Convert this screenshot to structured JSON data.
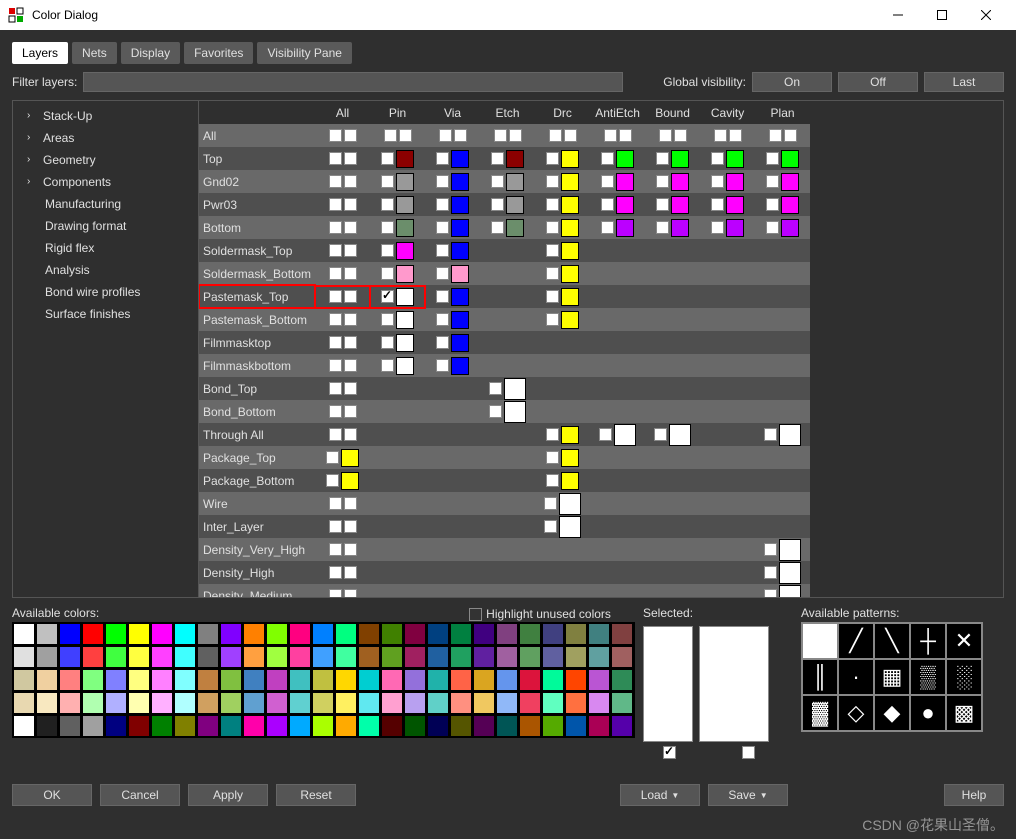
{
  "window": {
    "title": "Color Dialog"
  },
  "tabs": [
    "Layers",
    "Nets",
    "Display",
    "Favorites",
    "Visibility Pane"
  ],
  "activeTab": 0,
  "filter": {
    "label": "Filter layers:",
    "value": ""
  },
  "globalVisibility": {
    "label": "Global visibility:",
    "buttons": [
      "On",
      "Off",
      "Last"
    ]
  },
  "tree": [
    {
      "label": "Stack-Up",
      "expandable": true
    },
    {
      "label": "Areas",
      "expandable": true
    },
    {
      "label": "Geometry",
      "expandable": true
    },
    {
      "label": "Components",
      "expandable": true
    },
    {
      "label": "Manufacturing",
      "expandable": false
    },
    {
      "label": "Drawing format",
      "expandable": false
    },
    {
      "label": "Rigid flex",
      "expandable": false
    },
    {
      "label": "Analysis",
      "expandable": false
    },
    {
      "label": "Bond wire profiles",
      "expandable": false
    },
    {
      "label": "Surface finishes",
      "expandable": false
    }
  ],
  "columns": [
    "All",
    "Pin",
    "Via",
    "Etch",
    "Drc",
    "AntiEtch",
    "Bound",
    "Cavity",
    "Plan"
  ],
  "rows": [
    {
      "label": "All",
      "cells": {
        "All": [
          "cb",
          "cb"
        ],
        "Pin": [
          "cb",
          "cb"
        ],
        "Via": [
          "cb",
          "cb"
        ],
        "Etch": [
          "cb",
          "cb"
        ],
        "Drc": [
          "cb",
          "cb"
        ],
        "AntiEtch": [
          "cb",
          "cb"
        ],
        "Bound": [
          "cb",
          "cb"
        ],
        "Cavity": [
          "cb",
          "cb"
        ],
        "Plan": [
          "cb",
          "cb"
        ]
      }
    },
    {
      "label": "Top",
      "cells": {
        "All": [
          "cb",
          "cb"
        ],
        "Pin": [
          "cb",
          "#8b0000"
        ],
        "Via": [
          "cb",
          "#0000ff"
        ],
        "Etch": [
          "cb",
          "#8b0000"
        ],
        "Drc": [
          "cb",
          "#ffff00"
        ],
        "AntiEtch": [
          "cb",
          "#00ff00"
        ],
        "Bound": [
          "cb",
          "#00ff00"
        ],
        "Cavity": [
          "cb",
          "#00ff00"
        ],
        "Plan": [
          "cb",
          "#00ff00"
        ]
      }
    },
    {
      "label": "Gnd02",
      "cells": {
        "All": [
          "cb",
          "cb"
        ],
        "Pin": [
          "cb",
          "#999999"
        ],
        "Via": [
          "cb",
          "#0000ff"
        ],
        "Etch": [
          "cb",
          "#999999"
        ],
        "Drc": [
          "cb",
          "#ffff00"
        ],
        "AntiEtch": [
          "cb",
          "#ff00ff"
        ],
        "Bound": [
          "cb",
          "#ff00ff"
        ],
        "Cavity": [
          "cb",
          "#ff00ff"
        ],
        "Plan": [
          "cb",
          "#ff00ff"
        ]
      }
    },
    {
      "label": "Pwr03",
      "cells": {
        "All": [
          "cb",
          "cb"
        ],
        "Pin": [
          "cb",
          "#999999"
        ],
        "Via": [
          "cb",
          "#0000ff"
        ],
        "Etch": [
          "cb",
          "#999999"
        ],
        "Drc": [
          "cb",
          "#ffff00"
        ],
        "AntiEtch": [
          "cb",
          "#ff00ff"
        ],
        "Bound": [
          "cb",
          "#ff00ff"
        ],
        "Cavity": [
          "cb",
          "#ff00ff"
        ],
        "Plan": [
          "cb",
          "#ff00ff"
        ]
      }
    },
    {
      "label": "Bottom",
      "cells": {
        "All": [
          "cb",
          "cb"
        ],
        "Pin": [
          "cb",
          "#6b8e6b"
        ],
        "Via": [
          "cb",
          "#0000ff"
        ],
        "Etch": [
          "cb",
          "#6b8e6b"
        ],
        "Drc": [
          "cb",
          "#ffff00"
        ],
        "AntiEtch": [
          "cb",
          "#bb00ff"
        ],
        "Bound": [
          "cb",
          "#bb00ff"
        ],
        "Cavity": [
          "cb",
          "#bb00ff"
        ],
        "Plan": [
          "cb",
          "#bb00ff"
        ]
      }
    },
    {
      "label": "Soldermask_Top",
      "cells": {
        "All": [
          "cb",
          "cb"
        ],
        "Pin": [
          "cb",
          "#ff00ff"
        ],
        "Via": [
          "cb",
          "#0000ff"
        ],
        "Drc": [
          "cb",
          "#ffff00"
        ]
      }
    },
    {
      "label": "Soldermask_Bottom",
      "cells": {
        "All": [
          "cb",
          "cb"
        ],
        "Pin": [
          "cb",
          "#ff99cc"
        ],
        "Via": [
          "cb",
          "#ff99cc"
        ],
        "Drc": [
          "cb",
          "#ffff00"
        ]
      }
    },
    {
      "label": "Pastemask_Top",
      "highlight": true,
      "cells": {
        "All": [
          "cb",
          "cb"
        ],
        "Pin": [
          "cbc",
          "#ffffff"
        ],
        "Via": [
          "cb",
          "#0000ff"
        ],
        "Drc": [
          "cb",
          "#ffff00"
        ]
      }
    },
    {
      "label": "Pastemask_Bottom",
      "cells": {
        "All": [
          "cb",
          "cb"
        ],
        "Pin": [
          "cb",
          "#ffffff"
        ],
        "Via": [
          "cb",
          "#0000ff"
        ],
        "Drc": [
          "cb",
          "#ffff00"
        ]
      }
    },
    {
      "label": "Filmmasktop",
      "cells": {
        "All": [
          "cb",
          "cb"
        ],
        "Pin": [
          "cb",
          "#ffffff"
        ],
        "Via": [
          "cb",
          "#0000ff"
        ]
      }
    },
    {
      "label": "Filmmaskbottom",
      "cells": {
        "All": [
          "cb",
          "cb"
        ],
        "Pin": [
          "cb",
          "#ffffff"
        ],
        "Via": [
          "cb",
          "#0000ff"
        ]
      }
    },
    {
      "label": "Bond_Top",
      "cells": {
        "All": [
          "cb",
          "cb"
        ],
        "Etch": [
          "cb",
          "#ffffff",
          "big"
        ]
      }
    },
    {
      "label": "Bond_Bottom",
      "cells": {
        "All": [
          "cb",
          "cb"
        ],
        "Etch": [
          "cb",
          "#ffffff",
          "big"
        ]
      }
    },
    {
      "label": "Through All",
      "cells": {
        "All": [
          "cb",
          "cb"
        ],
        "Drc": [
          "cb",
          "#ffff00"
        ],
        "AntiEtch": [
          "cb",
          "#ffffff",
          "big"
        ],
        "Bound": [
          "cb",
          "#ffffff",
          "big"
        ],
        "Plan": [
          "cb",
          "#ffffff",
          "big"
        ]
      }
    },
    {
      "label": "Package_Top",
      "cells": {
        "All": [
          "cb",
          "#ffff00"
        ],
        "Drc": [
          "cb",
          "#ffff00"
        ]
      }
    },
    {
      "label": "Package_Bottom",
      "cells": {
        "All": [
          "cb",
          "#ffff00"
        ],
        "Drc": [
          "cb",
          "#ffff00"
        ]
      }
    },
    {
      "label": "Wire",
      "cells": {
        "All": [
          "cb",
          "cb"
        ],
        "Drc": [
          "cb",
          "#ffffff",
          "big"
        ]
      }
    },
    {
      "label": "Inter_Layer",
      "cells": {
        "All": [
          "cb",
          "cb"
        ],
        "Drc": [
          "cb",
          "#ffffff",
          "big"
        ]
      }
    },
    {
      "label": "Density_Very_High",
      "cells": {
        "All": [
          "cb",
          "cb"
        ],
        "Plan": [
          "cb",
          "#ffffff",
          "big"
        ]
      }
    },
    {
      "label": "Density_High",
      "cells": {
        "All": [
          "cb",
          "cb"
        ],
        "Plan": [
          "cb",
          "#ffffff",
          "big"
        ]
      }
    },
    {
      "label": "Density_Medium",
      "cells": {
        "All": [
          "cb",
          "cb"
        ],
        "Plan": [
          "cb",
          "#ffffff",
          "big"
        ]
      }
    }
  ],
  "availableColorsLabel": "Available colors:",
  "highlightUnused": "Highlight unused colors",
  "selectedLabel": "Selected:",
  "patternsLabel": "Available patterns:",
  "palette": [
    "#ffffff",
    "#c0c0c0",
    "#0000ff",
    "#ff0000",
    "#00ff00",
    "#ffff00",
    "#ff00ff",
    "#00ffff",
    "#808080",
    "#8000ff",
    "#ff8000",
    "#80ff00",
    "#ff0080",
    "#0080ff",
    "#00ff80",
    "#804000",
    "#408000",
    "#800040",
    "#004080",
    "#008040",
    "#400080",
    "#804080",
    "#408040",
    "#404080",
    "#808040",
    "#408080",
    "#804040",
    "#e0e0e0",
    "#a0a0a0",
    "#4040ff",
    "#ff4040",
    "#40ff40",
    "#ffff40",
    "#ff40ff",
    "#40ffff",
    "#606060",
    "#a040ff",
    "#ffa040",
    "#a0ff40",
    "#ff40a0",
    "#40a0ff",
    "#40ffa0",
    "#a06020",
    "#60a020",
    "#a02060",
    "#2060a0",
    "#20a060",
    "#6020a0",
    "#a060a0",
    "#60a060",
    "#6060a0",
    "#a0a060",
    "#60a0a0",
    "#a06060",
    "#d0c8a0",
    "#f0d0a0",
    "#ff8080",
    "#80ff80",
    "#8080ff",
    "#ffff80",
    "#ff80ff",
    "#80ffff",
    "#c08040",
    "#80c040",
    "#4080c0",
    "#c040c0",
    "#40c0c0",
    "#c0c040",
    "#ffd700",
    "#00ced1",
    "#ff69b4",
    "#9370db",
    "#20b2aa",
    "#ff6347",
    "#daa520",
    "#6495ed",
    "#dc143c",
    "#00fa9a",
    "#ff4500",
    "#ba55d3",
    "#2e8b57",
    "#e8d8b0",
    "#f8e8c0",
    "#ffb0b0",
    "#b0ffb0",
    "#b0b0ff",
    "#ffffb0",
    "#ffb0ff",
    "#b0ffff",
    "#d0a060",
    "#a0d060",
    "#60a0d0",
    "#d060d0",
    "#60d0d0",
    "#d0d060",
    "#fff060",
    "#60e8f0",
    "#ffa0d0",
    "#b8a0f0",
    "#60d0c8",
    "#ff9080",
    "#f0c860",
    "#90b8f8",
    "#f04060",
    "#60ffc0",
    "#ff7040",
    "#d888f0",
    "#60b888",
    "#ffffff",
    "#202020",
    "#606060",
    "#a0a0a0",
    "#000080",
    "#800000",
    "#008000",
    "#808000",
    "#800080",
    "#008080",
    "#ff00aa",
    "#aa00ff",
    "#00aaff",
    "#aaff00",
    "#ffaa00",
    "#00ffaa",
    "#550000",
    "#005500",
    "#000055",
    "#555500",
    "#550055",
    "#005555",
    "#aa5500",
    "#55aa00",
    "#0055aa",
    "#aa0055",
    "#5500aa"
  ],
  "patterns": [
    "",
    "╱",
    "╲",
    "┼",
    "✕",
    "║",
    "·",
    "▦",
    "▒",
    "░",
    "▓",
    "◇",
    "◆",
    "●",
    "▩"
  ],
  "buttons": {
    "ok": "OK",
    "cancel": "Cancel",
    "apply": "Apply",
    "reset": "Reset",
    "load": "Load",
    "save": "Save",
    "help": "Help"
  },
  "watermark": "CSDN @花果山圣僧。"
}
